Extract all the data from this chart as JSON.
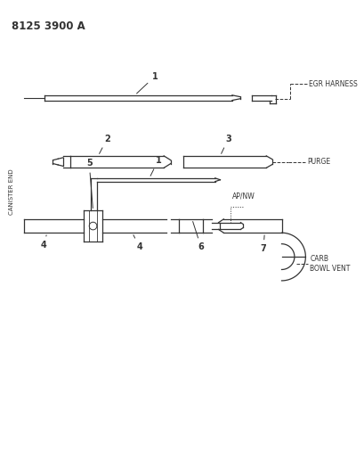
{
  "title": "8125 3900 A",
  "bg_color": "#ffffff",
  "line_color": "#333333",
  "text_color": "#333333",
  "canister_end_label": "CANISTER END",
  "egr_label": "EGR HARNESS",
  "purge_label": "PURGE",
  "apnw_label": "AP/NW",
  "carb_label": "CARB\nBOWL VENT"
}
